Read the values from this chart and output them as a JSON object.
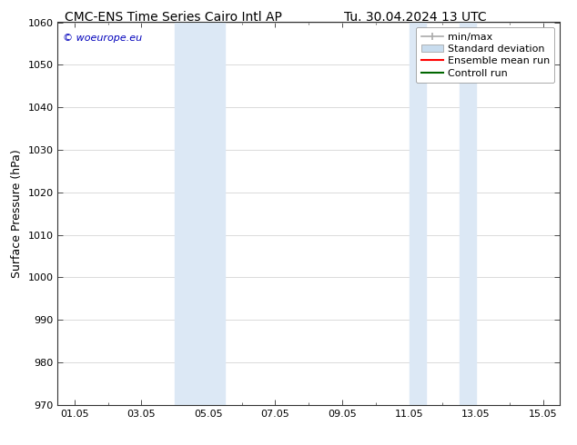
{
  "title_left": "CMC-ENS Time Series Cairo Intl AP",
  "title_right": "Tu. 30.04.2024 13 UTC",
  "ylabel": "Surface Pressure (hPa)",
  "ylim": [
    970,
    1060
  ],
  "yticks": [
    970,
    980,
    990,
    1000,
    1010,
    1020,
    1030,
    1040,
    1050,
    1060
  ],
  "x_start_day": 1,
  "x_end_day": 15,
  "xtick_days": [
    1,
    3,
    5,
    7,
    9,
    11,
    13,
    15
  ],
  "xtick_labels": [
    "01.05",
    "03.05",
    "05.05",
    "07.05",
    "09.05",
    "11.05",
    "13.05",
    "15.05"
  ],
  "shaded_bands": [
    {
      "xmin": 4.0,
      "xmax": 5.5,
      "color": "#dce8f5"
    },
    {
      "xmin": 11.0,
      "xmax": 11.5,
      "color": "#dce8f5"
    },
    {
      "xmin": 12.5,
      "xmax": 13.0,
      "color": "#dce8f5"
    }
  ],
  "watermark_text": "© woeurope.eu",
  "watermark_color": "#0000bb",
  "background_color": "#ffffff",
  "grid_color": "#cccccc",
  "spine_color": "#333333",
  "legend_minmax_color": "#aaaaaa",
  "legend_std_color": "#c8dcee",
  "legend_ensemble_color": "#ff0000",
  "legend_control_color": "#006600",
  "title_fontsize": 10,
  "tick_fontsize": 8,
  "ylabel_fontsize": 9,
  "legend_fontsize": 8,
  "watermark_fontsize": 8
}
